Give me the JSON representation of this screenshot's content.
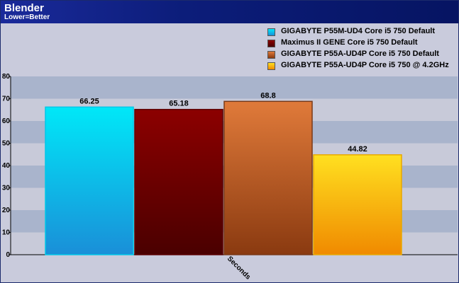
{
  "colors": {
    "plot_band_dark": "#a9b4cc",
    "plot_band_light": "#c8cad9",
    "header": "#0c1d7a"
  },
  "chart_data": {
    "type": "bar",
    "title": "Blender",
    "subtitle": "Lower=Better",
    "categories": [
      "Seconds"
    ],
    "ylim": [
      0,
      80
    ],
    "yticks": [
      0,
      10,
      20,
      30,
      40,
      50,
      60,
      70,
      80
    ],
    "grid": true,
    "legend_position": "top-right",
    "series": [
      {
        "name": "GIGABYTE P55M-UD4 Core i5 750 Default",
        "values": [
          66.25
        ],
        "label": "66.25",
        "color": "#00e8f8",
        "color_dark": "#1a8fd8",
        "border": "#00c8e8"
      },
      {
        "name": "Maximus II GENE Core i5 750 Default",
        "values": [
          65.18
        ],
        "label": "65.18",
        "color": "#8c0000",
        "color_dark": "#4a0000",
        "border": "#5a0000"
      },
      {
        "name": "GIGABYTE P55A-UD4P Core i5 750 Default",
        "values": [
          68.8
        ],
        "label": "68.8",
        "color": "#e07a3a",
        "color_dark": "#8a3a10",
        "border": "#7a3a18"
      },
      {
        "name": "GIGABYTE P55A-UD4P Core i5 750 @ 4.2GHz",
        "values": [
          44.82
        ],
        "label": "44.82",
        "color": "#ffe020",
        "color_dark": "#f08a00",
        "border": "#e8a800"
      }
    ]
  }
}
